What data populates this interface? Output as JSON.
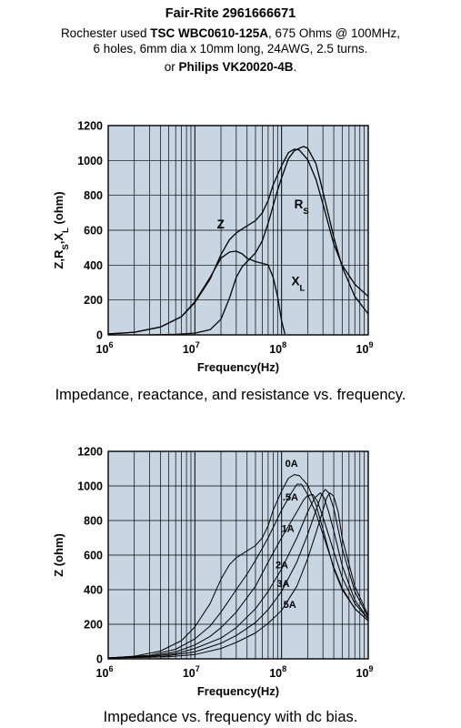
{
  "header": {
    "line1": "Fair-Rite 2961666671",
    "line2_prefix": "Rochester used ",
    "line2_part": "TSC WBC0610-125A",
    "line2_suffix": ", 675 Ohms @ 100MHz,",
    "line3": "6 holes, 6mm dia x 10mm long, 24AWG, 2.5 turns.",
    "line4_prefix": "or ",
    "line4_part": "Philips VK20020-4B",
    "line4_suffix": "."
  },
  "captions": {
    "top": "Impedance, reactance, and resistance vs. frequency.",
    "bottom": "Impedance vs. frequency with dc bias."
  },
  "colors": {
    "plot_bg": "#c8d6e4",
    "curve": "#000000",
    "grid": "#000000"
  },
  "chart_data": [
    {
      "type": "line",
      "xlabel": "Frequency(Hz)",
      "ylabel": "Z,RS,XL (ohm)",
      "ylabel_parts": [
        "Z,R",
        "S",
        ",X",
        "L",
        " (ohm)"
      ],
      "xscale": "log",
      "xlim": [
        1000000,
        1000000000
      ],
      "ylim": [
        0,
        1200
      ],
      "yticks": [
        0,
        200,
        400,
        600,
        800,
        1000,
        1200
      ],
      "xticks": [
        {
          "value": 1000000,
          "base": "10",
          "exp": "6"
        },
        {
          "value": 10000000,
          "base": "10",
          "exp": "7"
        },
        {
          "value": 100000000,
          "base": "10",
          "exp": "8"
        },
        {
          "value": 1000000000,
          "base": "10",
          "exp": "9"
        }
      ],
      "grid": true,
      "series": [
        {
          "name": "Z",
          "label_main": "Z",
          "label_sub": "",
          "label_at": [
            18000000,
            610
          ],
          "points": [
            [
              1000000,
              5
            ],
            [
              2000000,
              15
            ],
            [
              4000000,
              45
            ],
            [
              7000000,
              105
            ],
            [
              10000000,
              185
            ],
            [
              15000000,
              320
            ],
            [
              20000000,
              460
            ],
            [
              25000000,
              545
            ],
            [
              30000000,
              585
            ],
            [
              40000000,
              625
            ],
            [
              50000000,
              655
            ],
            [
              60000000,
              700
            ],
            [
              70000000,
              770
            ],
            [
              80000000,
              860
            ],
            [
              100000000,
              970
            ],
            [
              120000000,
              1045
            ],
            [
              140000000,
              1065
            ],
            [
              160000000,
              1060
            ],
            [
              200000000,
              1005
            ],
            [
              250000000,
              890
            ],
            [
              300000000,
              750
            ],
            [
              400000000,
              520
            ],
            [
              500000000,
              400
            ],
            [
              700000000,
              290
            ],
            [
              1000000000,
              220
            ]
          ]
        },
        {
          "name": "RS",
          "label_main": "R",
          "label_sub": "S",
          "label_at": [
            140000000,
            725
          ],
          "points": [
            [
              3000000,
              0
            ],
            [
              6000000,
              3
            ],
            [
              10000000,
              10
            ],
            [
              15000000,
              30
            ],
            [
              20000000,
              90
            ],
            [
              25000000,
              210
            ],
            [
              30000000,
              330
            ],
            [
              35000000,
              390
            ],
            [
              40000000,
              420
            ],
            [
              50000000,
              470
            ],
            [
              60000000,
              540
            ],
            [
              70000000,
              640
            ],
            [
              80000000,
              740
            ],
            [
              90000000,
              830
            ],
            [
              100000000,
              900
            ],
            [
              120000000,
              1010
            ],
            [
              140000000,
              1055
            ],
            [
              160000000,
              1070
            ],
            [
              180000000,
              1080
            ],
            [
              200000000,
              1070
            ],
            [
              250000000,
              980
            ],
            [
              300000000,
              820
            ],
            [
              400000000,
              560
            ],
            [
              500000000,
              390
            ],
            [
              700000000,
              220
            ],
            [
              1000000000,
              120
            ]
          ]
        },
        {
          "name": "XL",
          "label_main": "X",
          "label_sub": "L",
          "label_at": [
            130000000,
            285
          ],
          "points": [
            [
              1000000,
              5
            ],
            [
              2000000,
              15
            ],
            [
              4000000,
              45
            ],
            [
              7000000,
              105
            ],
            [
              10000000,
              190
            ],
            [
              15000000,
              330
            ],
            [
              20000000,
              440
            ],
            [
              25000000,
              475
            ],
            [
              30000000,
              480
            ],
            [
              35000000,
              465
            ],
            [
              40000000,
              440
            ],
            [
              50000000,
              420
            ],
            [
              60000000,
              410
            ],
            [
              70000000,
              400
            ],
            [
              80000000,
              330
            ],
            [
              90000000,
              220
            ],
            [
              100000000,
              80
            ],
            [
              110000000,
              0
            ]
          ]
        }
      ]
    },
    {
      "type": "line",
      "xlabel": "Frequency(Hz)",
      "ylabel": "Z (ohm)",
      "xscale": "log",
      "xlim": [
        1000000,
        1000000000
      ],
      "ylim": [
        0,
        1200
      ],
      "yticks": [
        0,
        200,
        400,
        600,
        800,
        1000,
        1200
      ],
      "xticks": [
        {
          "value": 1000000,
          "base": "10",
          "exp": "6"
        },
        {
          "value": 10000000,
          "base": "10",
          "exp": "7"
        },
        {
          "value": 100000000,
          "base": "10",
          "exp": "8"
        },
        {
          "value": 1000000000,
          "base": "10",
          "exp": "9"
        }
      ],
      "grid": true,
      "series": [
        {
          "name": "0A",
          "label_at": [
            110000000,
            1110
          ],
          "points": [
            [
              1000000,
              5
            ],
            [
              2000000,
              15
            ],
            [
              4000000,
              45
            ],
            [
              7000000,
              105
            ],
            [
              10000000,
              185
            ],
            [
              15000000,
              320
            ],
            [
              20000000,
              460
            ],
            [
              25000000,
              545
            ],
            [
              30000000,
              585
            ],
            [
              40000000,
              625
            ],
            [
              50000000,
              655
            ],
            [
              60000000,
              700
            ],
            [
              70000000,
              770
            ],
            [
              80000000,
              860
            ],
            [
              100000000,
              970
            ],
            [
              120000000,
              1045
            ],
            [
              140000000,
              1065
            ],
            [
              160000000,
              1060
            ],
            [
              200000000,
              1005
            ],
            [
              250000000,
              890
            ],
            [
              300000000,
              750
            ],
            [
              400000000,
              520
            ],
            [
              500000000,
              400
            ],
            [
              700000000,
              290
            ],
            [
              1000000000,
              220
            ]
          ]
        },
        {
          "name": ".5A",
          "label_at": [
            103000000,
            915
          ],
          "points": [
            [
              1000000,
              5
            ],
            [
              3000000,
              20
            ],
            [
              6000000,
              55
            ],
            [
              10000000,
              115
            ],
            [
              15000000,
              190
            ],
            [
              20000000,
              270
            ],
            [
              30000000,
              400
            ],
            [
              40000000,
              490
            ],
            [
              50000000,
              570
            ],
            [
              70000000,
              700
            ],
            [
              100000000,
              860
            ],
            [
              130000000,
              960
            ],
            [
              150000000,
              1010
            ],
            [
              170000000,
              1010
            ],
            [
              200000000,
              950
            ],
            [
              250000000,
              840
            ],
            [
              300000000,
              720
            ],
            [
              400000000,
              530
            ],
            [
              500000000,
              410
            ],
            [
              700000000,
              290
            ],
            [
              1000000000,
              220
            ]
          ]
        },
        {
          "name": "1A",
          "label_at": [
            100000000,
            735
          ],
          "points": [
            [
              1000000,
              5
            ],
            [
              3000000,
              15
            ],
            [
              6000000,
              40
            ],
            [
              10000000,
              80
            ],
            [
              15000000,
              130
            ],
            [
              20000000,
              180
            ],
            [
              30000000,
              270
            ],
            [
              50000000,
              420
            ],
            [
              70000000,
              560
            ],
            [
              100000000,
              700
            ],
            [
              150000000,
              850
            ],
            [
              180000000,
              920
            ],
            [
              200000000,
              945
            ],
            [
              230000000,
              950
            ],
            [
              260000000,
              910
            ],
            [
              300000000,
              820
            ],
            [
              400000000,
              620
            ],
            [
              500000000,
              470
            ],
            [
              700000000,
              320
            ],
            [
              1000000000,
              230
            ]
          ]
        },
        {
          "name": "2A",
          "label_at": [
            85000000,
            525
          ],
          "points": [
            [
              1000000,
              5
            ],
            [
              3000000,
              12
            ],
            [
              6000000,
              30
            ],
            [
              10000000,
              60
            ],
            [
              20000000,
              120
            ],
            [
              30000000,
              180
            ],
            [
              50000000,
              290
            ],
            [
              70000000,
              390
            ],
            [
              100000000,
              520
            ],
            [
              150000000,
              700
            ],
            [
              200000000,
              850
            ],
            [
              240000000,
              930
            ],
            [
              280000000,
              960
            ],
            [
              310000000,
              930
            ],
            [
              350000000,
              850
            ],
            [
              400000000,
              740
            ],
            [
              500000000,
              540
            ],
            [
              700000000,
              340
            ],
            [
              1000000000,
              230
            ]
          ]
        },
        {
          "name": "3A",
          "label_at": [
            88000000,
            415
          ],
          "points": [
            [
              1000000,
              5
            ],
            [
              4000000,
              12
            ],
            [
              10000000,
              40
            ],
            [
              20000000,
              90
            ],
            [
              30000000,
              135
            ],
            [
              50000000,
              210
            ],
            [
              70000000,
              285
            ],
            [
              100000000,
              390
            ],
            [
              150000000,
              560
            ],
            [
              200000000,
              720
            ],
            [
              250000000,
              860
            ],
            [
              290000000,
              950
            ],
            [
              320000000,
              980
            ],
            [
              350000000,
              960
            ],
            [
              400000000,
              870
            ],
            [
              500000000,
              640
            ],
            [
              700000000,
              390
            ],
            [
              1000000000,
              240
            ]
          ]
        },
        {
          "name": "5A",
          "label_at": [
            105000000,
            295
          ],
          "points": [
            [
              1000000,
              5
            ],
            [
              5000000,
              12
            ],
            [
              10000000,
              25
            ],
            [
              20000000,
              60
            ],
            [
              30000000,
              95
            ],
            [
              50000000,
              150
            ],
            [
              70000000,
              205
            ],
            [
              100000000,
              280
            ],
            [
              150000000,
              420
            ],
            [
              200000000,
              580
            ],
            [
              250000000,
              730
            ],
            [
              300000000,
              860
            ],
            [
              330000000,
              930
            ],
            [
              360000000,
              960
            ],
            [
              400000000,
              940
            ],
            [
              450000000,
              850
            ],
            [
              500000000,
              700
            ],
            [
              700000000,
              420
            ],
            [
              1000000000,
              250
            ]
          ]
        }
      ]
    }
  ]
}
